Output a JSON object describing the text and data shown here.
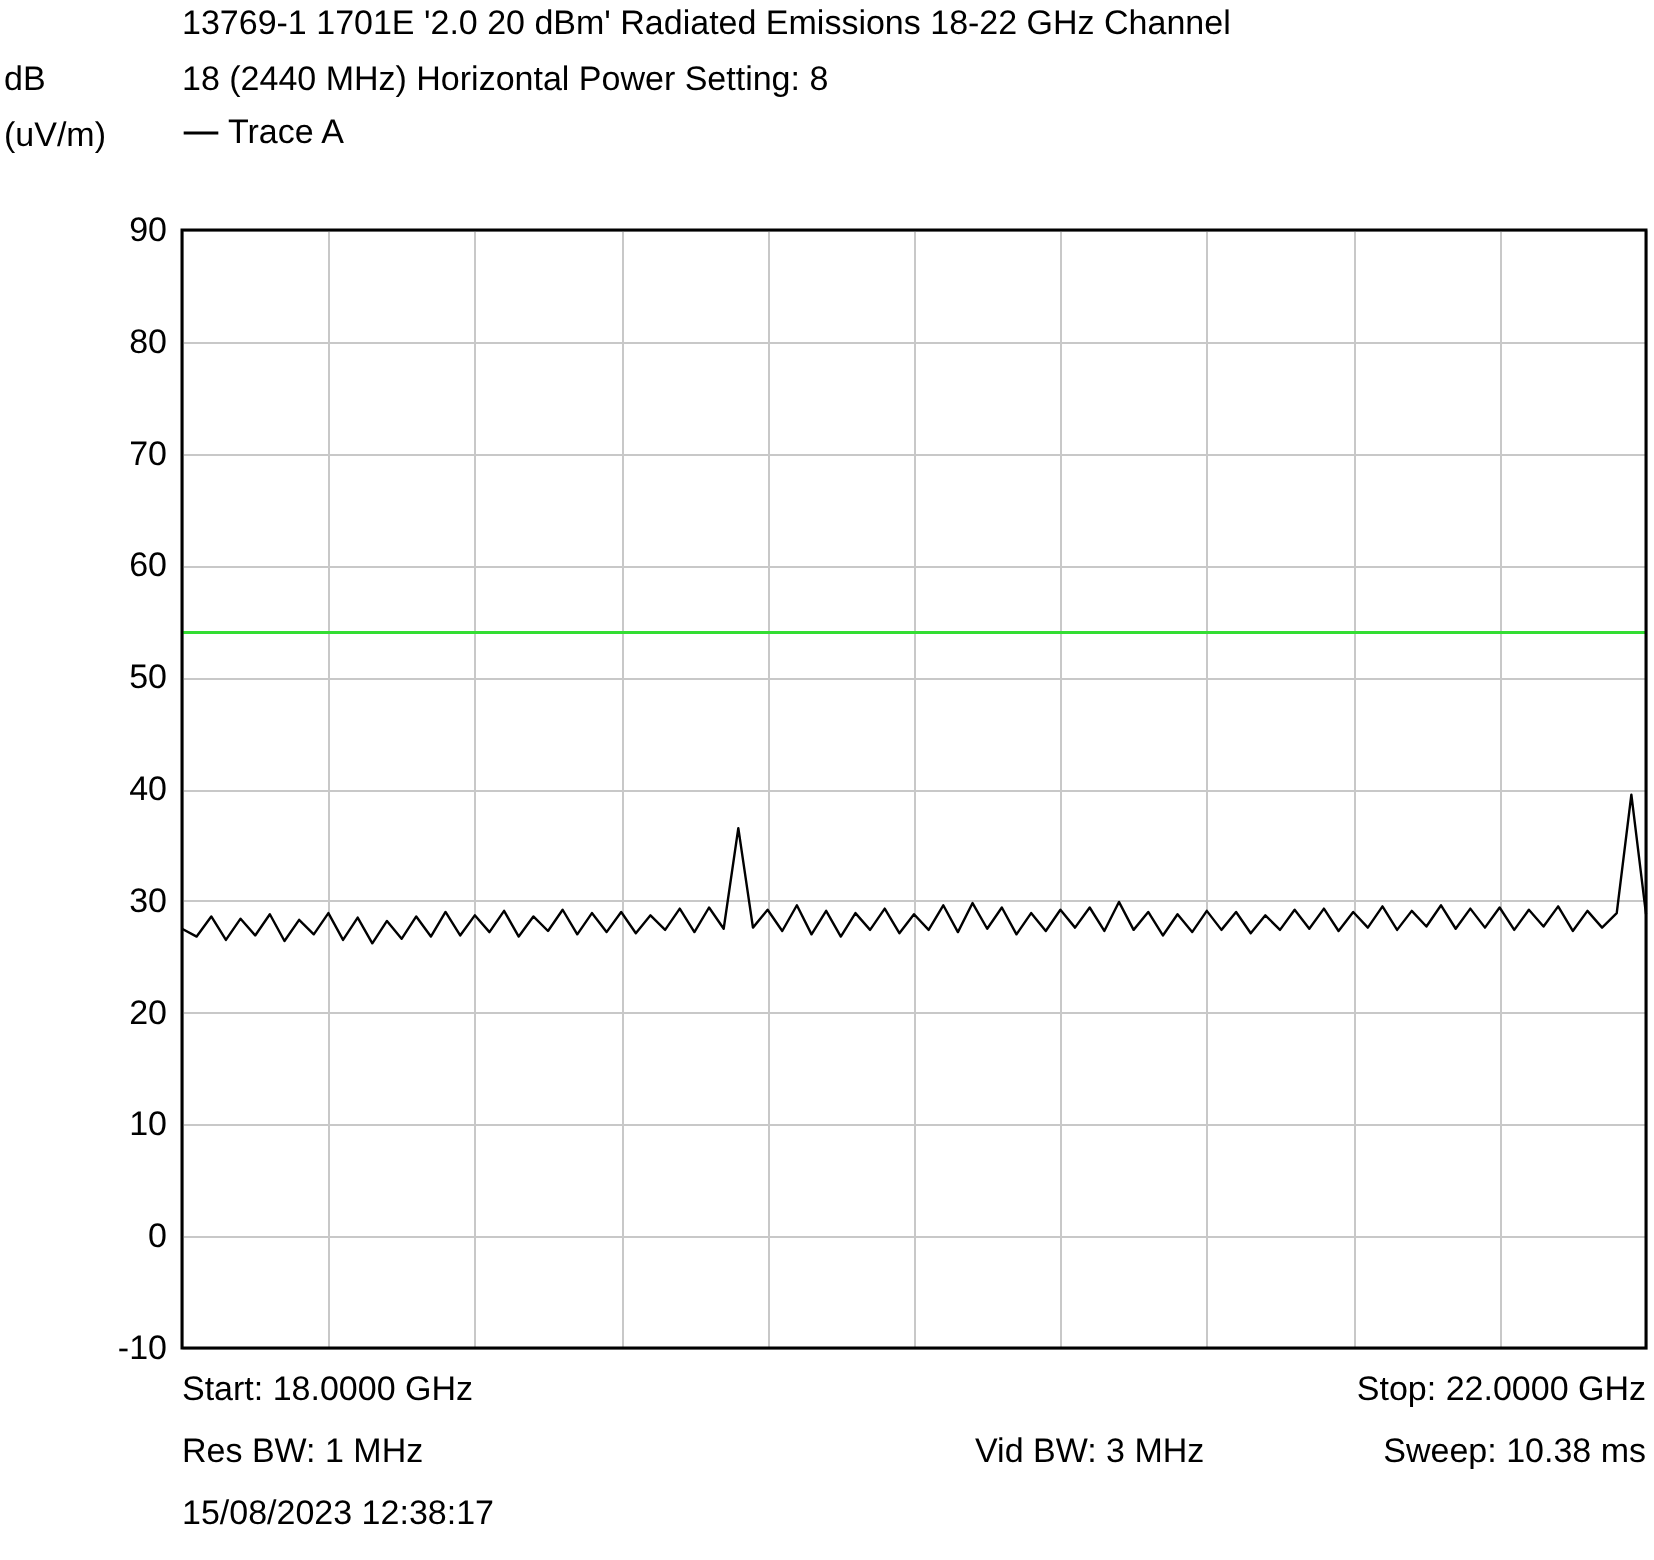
{
  "chart_data": {
    "type": "line",
    "title": "13769-1 1701E '2.0 20 dBm' Radiated Emissions 18-22 GHz Channel 18 (2440 MHz) Horizontal Power Setting: 8",
    "ylabel": "dB (uV/m)",
    "ylim": [
      -10,
      90
    ],
    "yticks": [
      -10,
      0,
      10,
      20,
      30,
      40,
      50,
      60,
      70,
      80,
      90
    ],
    "grid": true,
    "legend": "top left",
    "marker": "none",
    "line_style": "solid",
    "categories": [
      null,
      null,
      null,
      null,
      null,
      null,
      null,
      null,
      null,
      null,
      null,
      null,
      null,
      null,
      null,
      null,
      null,
      null,
      null,
      null,
      null,
      null,
      null,
      null,
      null,
      null,
      null,
      null,
      null,
      null,
      null,
      null,
      null,
      null,
      null,
      null,
      null,
      null,
      null,
      null,
      null,
      null,
      null,
      null,
      null,
      null,
      null,
      null,
      null,
      null,
      null,
      null,
      null,
      null,
      null,
      null,
      null,
      null,
      null,
      null,
      null,
      null,
      null,
      null,
      null,
      null,
      null,
      null,
      null,
      null,
      null,
      null,
      null,
      null,
      null,
      null,
      null,
      null,
      null,
      null,
      null,
      null,
      null,
      null,
      null,
      null,
      null,
      null,
      null,
      null,
      null,
      null,
      null,
      null,
      null,
      null,
      null,
      null,
      null,
      null,
      null
    ],
    "series": [
      {
        "name": "Trace A",
        "color": "#000000",
        "values": [
          27.5,
          26.8,
          28.6,
          26.5,
          28.4,
          26.9,
          28.8,
          26.4,
          28.3,
          27.0,
          28.9,
          26.5,
          28.5,
          26.2,
          28.2,
          26.6,
          28.6,
          26.8,
          29.0,
          26.9,
          28.7,
          27.2,
          29.1,
          26.8,
          28.6,
          27.3,
          29.2,
          27.0,
          28.9,
          27.2,
          29.0,
          27.1,
          28.7,
          27.4,
          29.3,
          27.2,
          29.4,
          27.5,
          36.5,
          27.6,
          29.2,
          27.3,
          29.6,
          27.0,
          29.1,
          26.8,
          28.9,
          27.4,
          29.3,
          27.1,
          28.8,
          27.4,
          29.6,
          27.2,
          29.8,
          27.5,
          29.4,
          27.0,
          28.9,
          27.3,
          29.2,
          27.6,
          29.4,
          27.3,
          29.9,
          27.4,
          29.0,
          26.9,
          28.8,
          27.2,
          29.1,
          27.4,
          29.0,
          27.1,
          28.7,
          27.4,
          29.2,
          27.5,
          29.3,
          27.3,
          29.0,
          27.6,
          29.5,
          27.4,
          29.1,
          27.7,
          29.6,
          27.5,
          29.3,
          27.6,
          29.4,
          27.4,
          29.2,
          27.7,
          29.5,
          27.3,
          29.1,
          27.6,
          28.9,
          39.5,
          28.8
        ]
      }
    ],
    "ref_lines": [
      {
        "axis": "y",
        "value": 54,
        "color": "#33dd33"
      }
    ],
    "annotations": [
      "Start: 18.0000 GHz",
      "Stop: 22.0000 GHz",
      "Res BW: 1 MHz",
      "Vid BW: 3 MHz",
      "Sweep: 10.38 ms",
      "15/08/2023 12:38:17"
    ]
  }
}
